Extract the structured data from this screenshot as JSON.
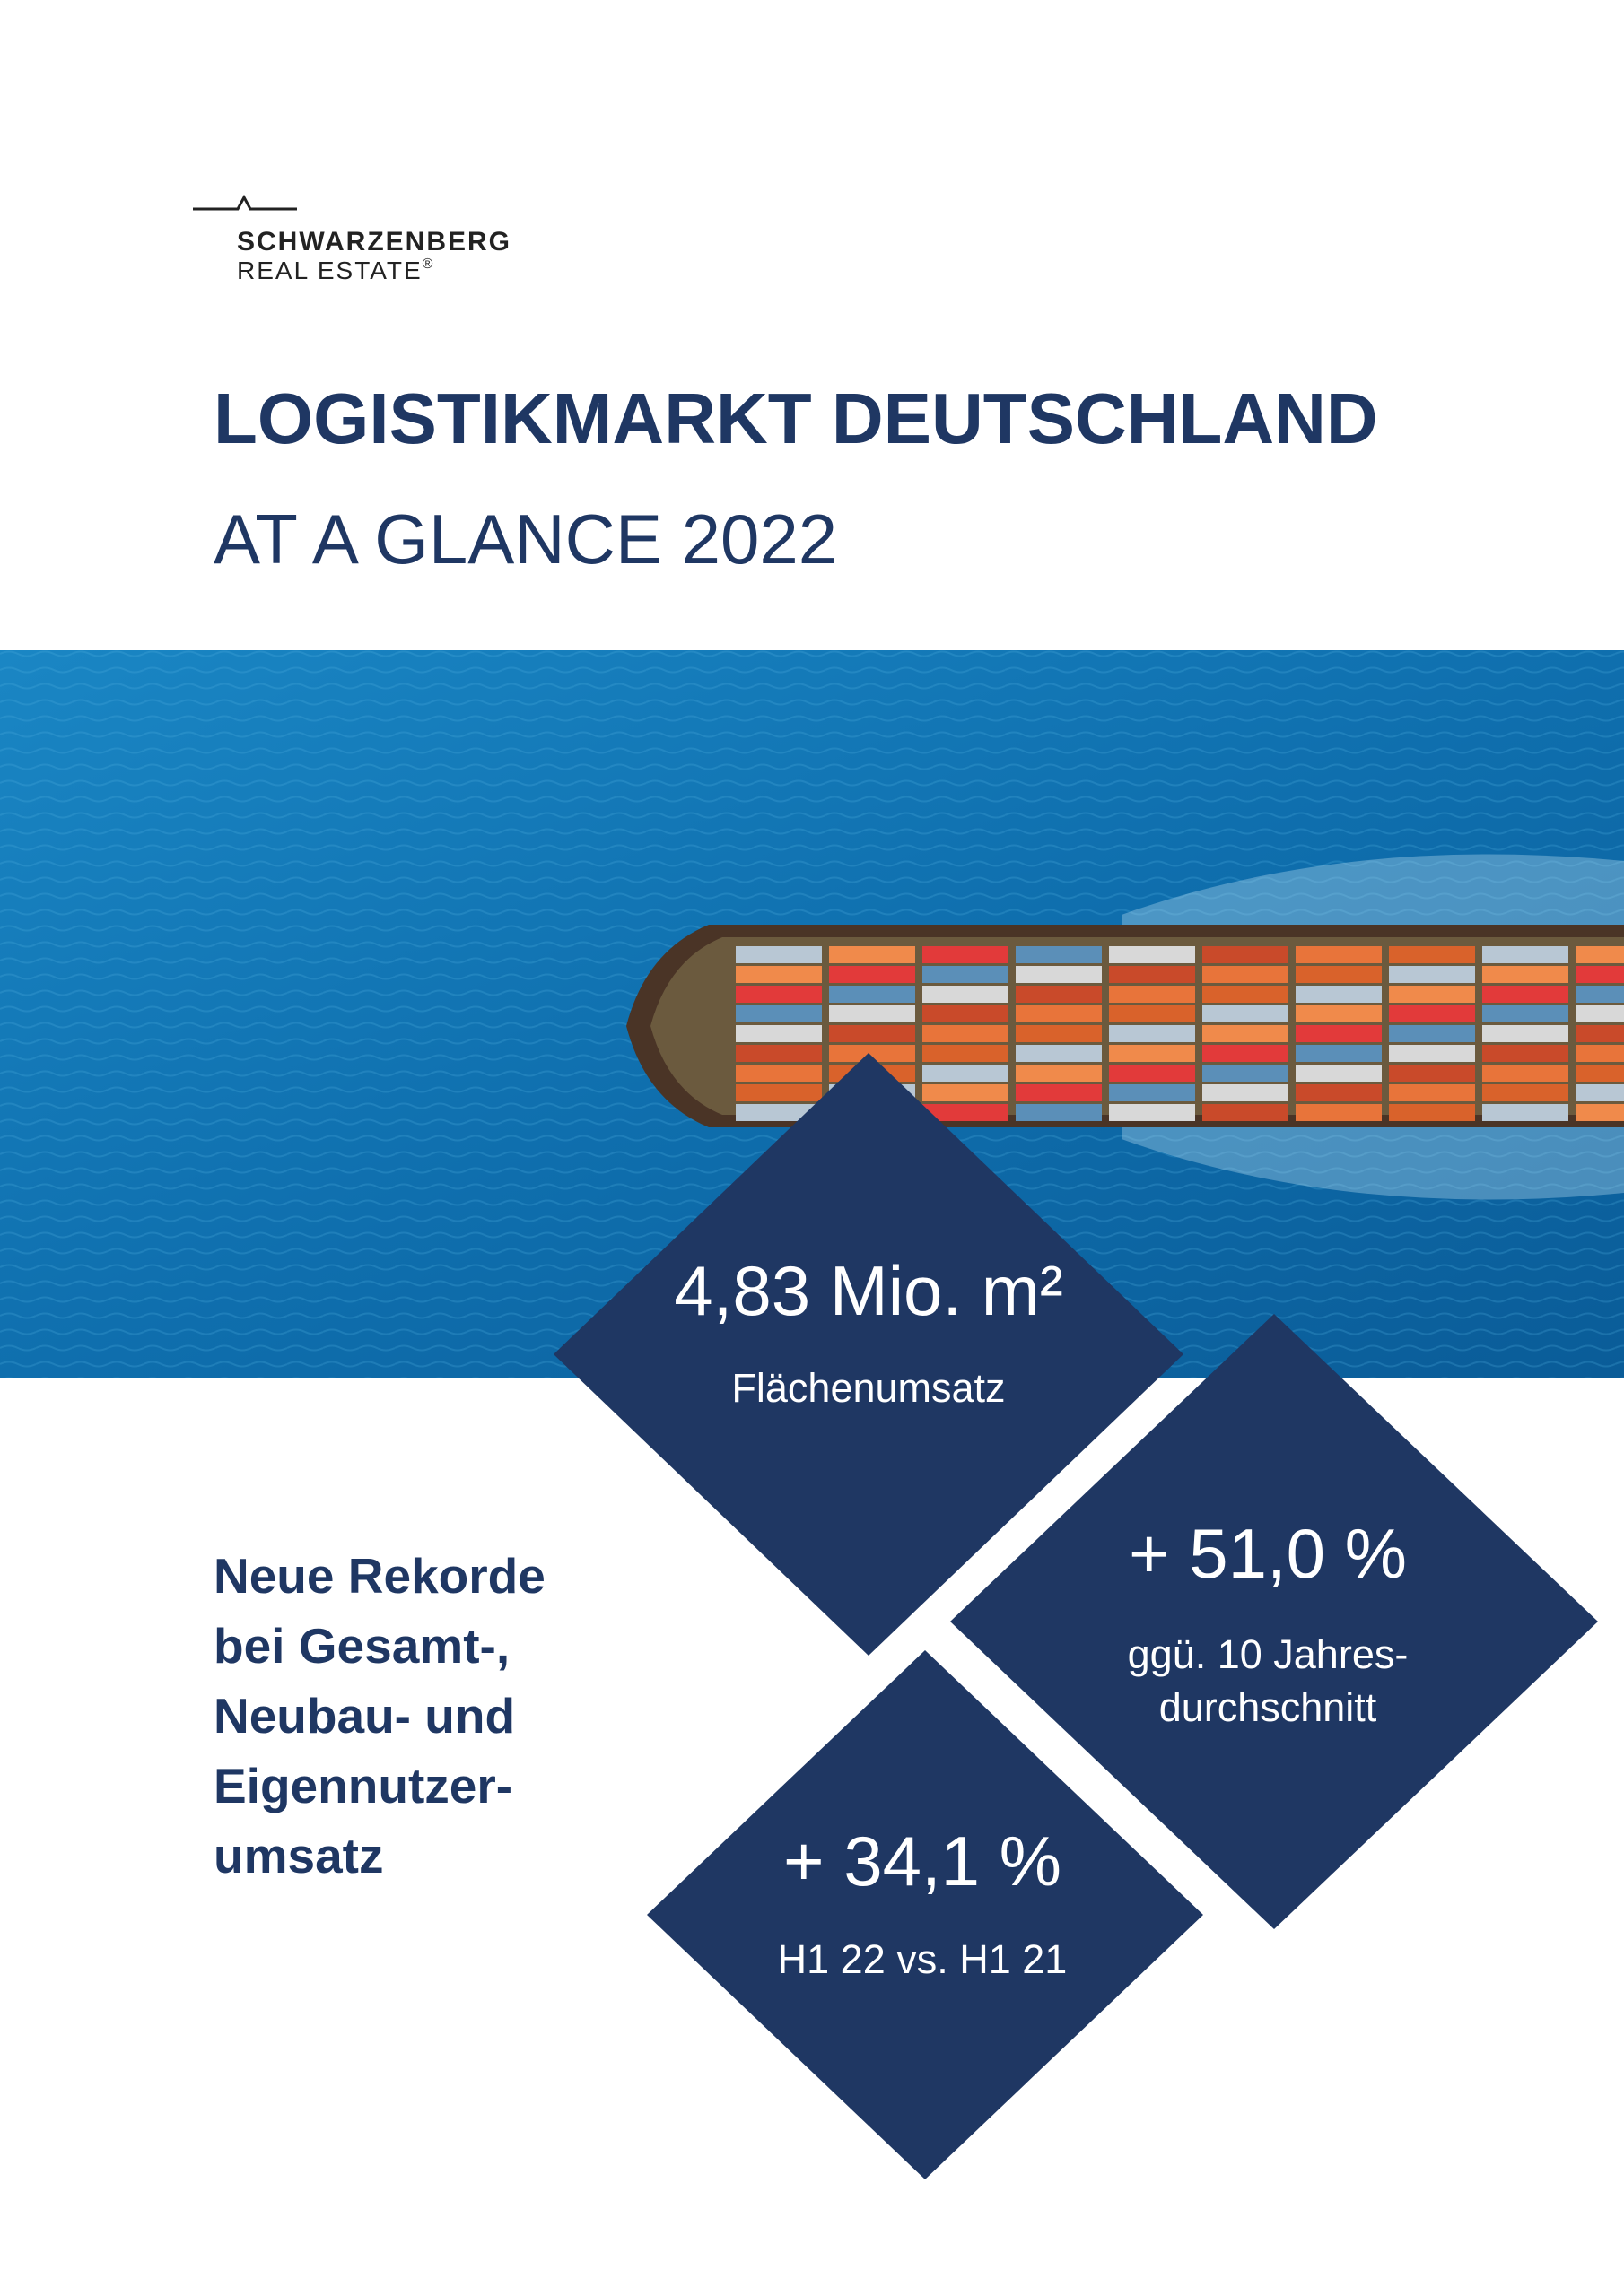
{
  "logo": {
    "name": "SCHWARZENBERG",
    "subtitle": "REAL ESTATE",
    "mark": "®"
  },
  "header": {
    "title": "LOGISTIKMARKT DEUTSCHLAND",
    "subtitle": "AT A GLANCE 2022"
  },
  "highlights": [
    {
      "value": "4,83 Mio. m²",
      "label": [
        "Flächenumsatz"
      ]
    },
    {
      "value": "+ 51,0 %",
      "label": [
        "ggü. 10 Jahres-",
        "durchschnitt"
      ]
    },
    {
      "value": "+ 34,1 %",
      "label": [
        "H1 22 vs. H1 21"
      ]
    }
  ],
  "summary": [
    "Neue Rekorde",
    "bei Gesamt-,",
    "Neubau- und",
    "Eigennutzer-",
    "umsatz"
  ]
}
